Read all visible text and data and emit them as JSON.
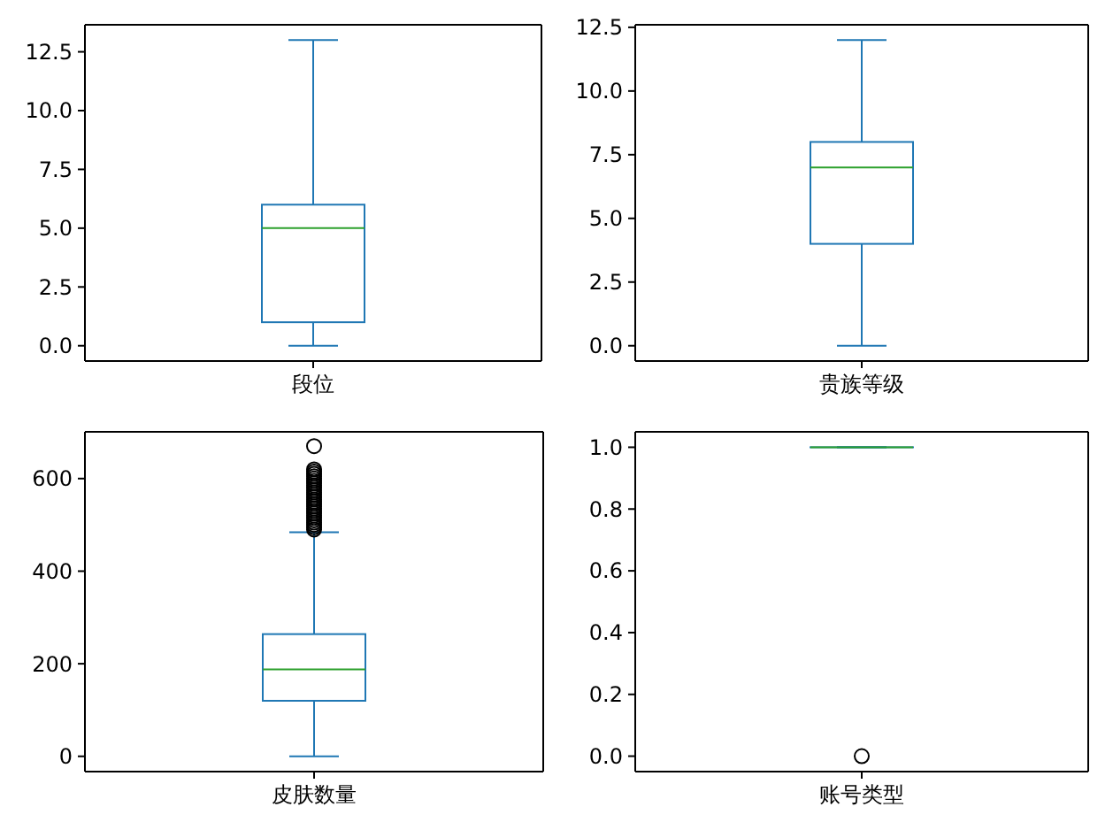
{
  "chart_data": [
    {
      "type": "box",
      "categories": [
        "段位"
      ],
      "boxes": [
        {
          "low": 0,
          "q1": 1,
          "median": 5,
          "q3": 6,
          "high": 13
        }
      ],
      "ylim": [
        -0.65,
        13.65
      ],
      "yticks": [
        {
          "value": 0,
          "label": "0.0"
        },
        {
          "value": 2.5,
          "label": "2.5"
        },
        {
          "value": 5,
          "label": "5.0"
        },
        {
          "value": 7.5,
          "label": "7.5"
        },
        {
          "value": 10,
          "label": "10.0"
        },
        {
          "value": 12.5,
          "label": "12.5"
        }
      ],
      "grid": false
    },
    {
      "type": "box",
      "categories": [
        "贵族等级"
      ],
      "boxes": [
        {
          "low": 0,
          "q1": 4,
          "median": 7,
          "q3": 8,
          "high": 12
        }
      ],
      "ylim": [
        -0.6,
        12.6
      ],
      "yticks": [
        {
          "value": 0,
          "label": "0.0"
        },
        {
          "value": 2.5,
          "label": "2.5"
        },
        {
          "value": 5,
          "label": "5.0"
        },
        {
          "value": 7.5,
          "label": "7.5"
        },
        {
          "value": 10,
          "label": "10.0"
        },
        {
          "value": 12.5,
          "label": "12.5"
        }
      ],
      "grid": false
    },
    {
      "type": "box",
      "categories": [
        "皮肤数量"
      ],
      "boxes": [
        {
          "low": 0,
          "q1": 120,
          "median": 188,
          "q3": 264,
          "high": 484,
          "outliers": [
            490,
            495,
            500,
            505,
            510,
            515,
            520,
            525,
            530,
            535,
            540,
            545,
            550,
            555,
            560,
            565,
            570,
            575,
            580,
            585,
            590,
            595,
            600,
            605,
            610,
            615,
            620,
            670
          ]
        }
      ],
      "ylim": [
        -33,
        701
      ],
      "yticks": [
        0,
        200,
        400,
        600
      ],
      "grid": false
    },
    {
      "type": "box",
      "categories": [
        "账号类型"
      ],
      "boxes": [
        {
          "low": 1,
          "q1": 1,
          "median": 1,
          "q3": 1,
          "high": 1,
          "outliers": [
            0
          ]
        }
      ],
      "ylim": [
        -0.05,
        1.05
      ],
      "yticks": [
        {
          "value": 0,
          "label": "0.0"
        },
        {
          "value": 0.2,
          "label": "0.2"
        },
        {
          "value": 0.4,
          "label": "0.4"
        },
        {
          "value": 0.6,
          "label": "0.6"
        },
        {
          "value": 0.8,
          "label": "0.8"
        },
        {
          "value": 1,
          "label": "1.0"
        }
      ],
      "grid": false
    }
  ]
}
